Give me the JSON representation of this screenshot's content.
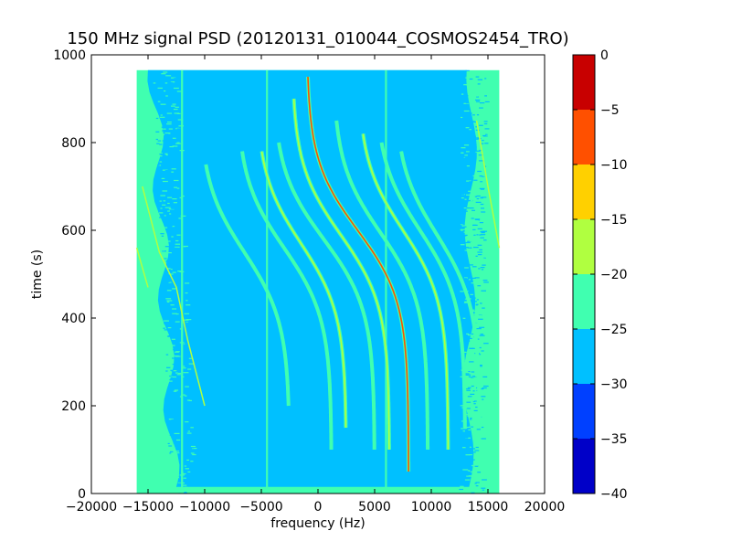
{
  "chart_data": {
    "type": "heatmap",
    "title": "150 MHz signal PSD (20120131_010044_COSMOS2454_TRO)",
    "xlabel": "frequency (Hz)",
    "ylabel": "time (s)",
    "xlim": [
      -20000,
      20000
    ],
    "ylim": [
      0,
      1000
    ],
    "x_ticks": [
      -20000,
      -15000,
      -10000,
      -5000,
      0,
      5000,
      10000,
      15000,
      20000
    ],
    "x_tick_labels": [
      "−20000",
      "−15000",
      "−10000",
      "−5000",
      "0",
      "5000",
      "10000",
      "15000",
      "20000"
    ],
    "y_ticks": [
      0,
      200,
      400,
      600,
      800,
      1000
    ],
    "y_tick_labels": [
      "0",
      "200",
      "400",
      "600",
      "800",
      "1000"
    ],
    "data_extent": {
      "x": [
        -16000,
        16000
      ],
      "y": [
        0,
        965
      ]
    },
    "grid": false,
    "background_level_db": -27.5,
    "edge_noise_level_db": -22.5,
    "colorbar": {
      "min": -40,
      "max": 0,
      "levels": [
        -40,
        -35,
        -30,
        -25,
        -20,
        -15,
        -10,
        -5,
        0
      ],
      "tick_labels": [
        "−40",
        "−35",
        "−30",
        "−25",
        "−20",
        "−15",
        "−10",
        "−5",
        "0"
      ],
      "colors": [
        "#0000c8",
        "#0040ff",
        "#00c0ff",
        "#40ffb0",
        "#b0ff40",
        "#ffd000",
        "#ff5000",
        "#c80000"
      ]
    },
    "vertical_lines": [
      {
        "freq": -12000,
        "level_db": -22.5
      },
      {
        "freq": -4500,
        "level_db": -22.5
      },
      {
        "freq": 6000,
        "level_db": -22.5
      }
    ],
    "doppler_tracks": [
      {
        "offset": -6500,
        "amplitude": 4000,
        "center_time": 550,
        "time_range": [
          200,
          750
        ],
        "level_db": -22.5
      },
      {
        "offset": -3000,
        "amplitude": 4200,
        "center_time": 560,
        "time_range": [
          100,
          780
        ],
        "level_db": -22.5
      },
      {
        "offset": -1500,
        "amplitude": 4000,
        "center_time": 570,
        "time_range": [
          150,
          780
        ],
        "level_db": -17.5
      },
      {
        "offset": 500,
        "amplitude": 4500,
        "center_time": 580,
        "time_range": [
          100,
          800
        ],
        "level_db": -22.5
      },
      {
        "offset": 2000,
        "amplitude": 4300,
        "center_time": 590,
        "time_range": [
          100,
          900
        ],
        "level_db": -17.5
      },
      {
        "offset": 3500,
        "amplitude": 4500,
        "center_time": 600,
        "time_range": [
          50,
          950
        ],
        "level_db": -7.5
      },
      {
        "offset": 5500,
        "amplitude": 4200,
        "center_time": 595,
        "time_range": [
          100,
          850
        ],
        "level_db": -22.5
      },
      {
        "offset": 7500,
        "amplitude": 4000,
        "center_time": 600,
        "time_range": [
          100,
          820
        ],
        "level_db": -17.5
      },
      {
        "offset": 9000,
        "amplitude": 4000,
        "center_time": 600,
        "time_range": [
          150,
          800
        ],
        "level_db": -22.5
      },
      {
        "offset": 10500,
        "amplitude": 3800,
        "center_time": 590,
        "time_range": [
          150,
          780
        ],
        "level_db": -22.5
      }
    ],
    "edge_tracks": [
      {
        "points": [
          [
            -16000,
            560
          ],
          [
            -15000,
            470
          ]
        ],
        "level_db": -17.5
      },
      {
        "points": [
          [
            -15500,
            700
          ],
          [
            -14000,
            550
          ],
          [
            -12500,
            470
          ],
          [
            -11500,
            350
          ],
          [
            -10000,
            200
          ]
        ],
        "level_db": -17.5
      },
      {
        "points": [
          [
            14000,
            850
          ],
          [
            15000,
            700
          ],
          [
            16000,
            560
          ]
        ],
        "level_db": -17.5
      }
    ]
  }
}
